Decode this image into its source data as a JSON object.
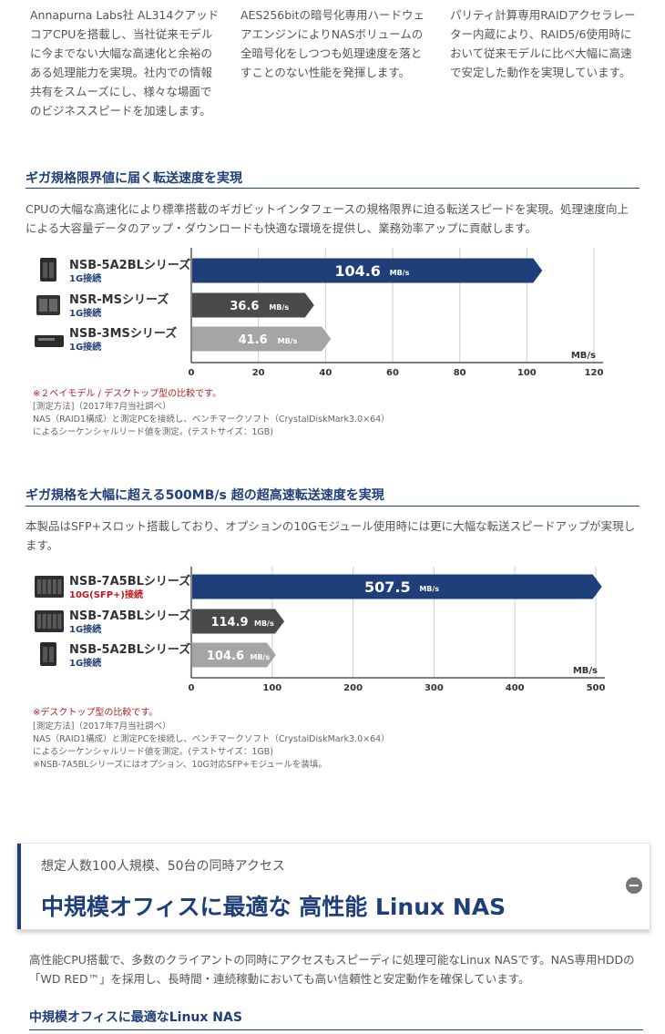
{
  "features": [
    "Annapurna Labs社 AL314クアッドコアCPUを搭載し、当社従来モデルに今までない大幅な高速化と余裕のある処理能力を実現。社内での情報共有をスムーズにし、様々な場面でのビジネススピードを加速します。",
    "AES256bitの暗号化専用ハードウェアエンジンによりNASボリュームの全暗号化をしつつも処理速度を落とすことのない性能を発揮します。",
    "パリティ計算専用RAIDアクセラレーター内蔵により、RAID5/6使用時において従来モデルに比べ大幅に高速で安定した動作を実現しています。"
  ],
  "section1": {
    "title": "ギガ規格限界値に届く転送速度を実現",
    "description": "CPUの大幅な高速化により標準搭載のギガビットインタフェースの規格限界に迫る転送スピードを実現。処理速度向上による大容量データのアップ・ダウンロードも快適な環境を提供し、業務効率アップに貢献します。",
    "note_red": "※２ベイモデル / デスクトップ型の比較です。",
    "notes": [
      "[測定方法]（2017年7月当社調べ）",
      "NAS（RAID1構成）と測定PCを接続し、ベンチマークソフト（CrystalDiskMark3.0×64）",
      "によるシーケンシャルリード値を測定。(テストサイズ：1GB)"
    ]
  },
  "section2": {
    "title": "ギガ規格を大幅に超える500MB/s 超の超高速転送速度を実現",
    "description": "本製品はSFP+スロット搭載しており、オプションの10Gモジュール使用時には更に大幅な転送スピードアップが実現します。",
    "note_red": "※デスクトップ型の比較です。",
    "notes": [
      "[測定方法]（2017年7月当社調べ）",
      "NAS（RAID1構成）と測定PCを接続し、ベンチマークソフト（CrystalDiskMark3.0×64）",
      "によるシーケンシャルリード値を測定。(テストサイズ：1GB)",
      "※NSB-7A5BLシリーズにはオプション、10G対応SFP+モジュールを装填。"
    ]
  },
  "chart_data": [
    {
      "type": "bar",
      "orientation": "horizontal",
      "categories": [
        "NSB-5A2BLシリーズ",
        "NSR-MSシリーズ",
        "NSB-3MSシリーズ"
      ],
      "sublabels": [
        "1G接続",
        "1G接続",
        "1G接続"
      ],
      "values": [
        104.6,
        36.6,
        41.6
      ],
      "value_unit": "MB/s",
      "xlabel": "MB/s",
      "xlim": [
        0,
        120
      ],
      "ticks": [
        0,
        20,
        40,
        60,
        80,
        100,
        120
      ],
      "bar_colors": [
        "#1f3f7a",
        "#4a4a4a",
        "#a5a5a5"
      ],
      "grid": true
    },
    {
      "type": "bar",
      "orientation": "horizontal",
      "categories": [
        "NSB-7A5BLシリーズ",
        "NSB-7A5BLシリーズ",
        "NSB-5A2BLシリーズ"
      ],
      "sublabels": [
        "10G(SFP+)接続",
        "1G接続",
        "1G接続"
      ],
      "values": [
        507.5,
        114.9,
        104.6
      ],
      "value_unit": "MB/s",
      "xlabel": "MB/s",
      "xlim": [
        0,
        500
      ],
      "ticks": [
        0,
        100,
        200,
        300,
        400,
        500
      ],
      "bar_colors": [
        "#1f3f7a",
        "#4a4a4a",
        "#a5a5a5"
      ],
      "grid": true
    }
  ],
  "promo": {
    "subtitle": "想定人数100人規模、50台の同時アクセス",
    "title": "中規模オフィスに最適な 高性能 Linux NAS",
    "toggle_icon": "minus-circle-icon"
  },
  "intro": "高性能CPU搭載で、多数のクライアントの同時にアクセスもスピーディに処理可能なLinux NASです。NAS専用HDDの「WD RED™」を採用し、長時間・連続稼動においても高い信頼性と安定動作を確保しています。",
  "bottom_heading": "中規模オフィスに最適なLinux NAS",
  "colors": {
    "accent": "#1f3f7a",
    "red": "#c0181e"
  }
}
